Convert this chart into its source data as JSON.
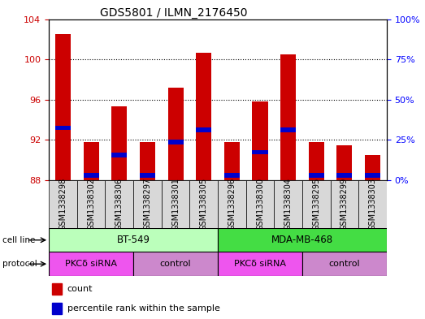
{
  "title": "GDS5801 / ILMN_2176450",
  "samples": [
    "GSM1338298",
    "GSM1338302",
    "GSM1338306",
    "GSM1338297",
    "GSM1338301",
    "GSM1338305",
    "GSM1338296",
    "GSM1338300",
    "GSM1338304",
    "GSM1338295",
    "GSM1338299",
    "GSM1338303"
  ],
  "red_bar_tops": [
    102.5,
    91.8,
    95.3,
    91.8,
    97.2,
    100.7,
    91.8,
    95.8,
    100.5,
    91.8,
    91.5,
    90.5
  ],
  "blue_bar_values": [
    93.2,
    88.5,
    90.5,
    88.5,
    91.8,
    93.0,
    88.5,
    90.8,
    93.0,
    88.5,
    88.5,
    88.5
  ],
  "bar_bottom": 88.0,
  "ylim_left": [
    88,
    104
  ],
  "ylim_right": [
    0,
    100
  ],
  "yticks_left": [
    88,
    92,
    96,
    100,
    104
  ],
  "yticks_right": [
    0,
    25,
    50,
    75,
    100
  ],
  "yticklabels_right": [
    "0%",
    "25%",
    "50%",
    "75%",
    "100%"
  ],
  "red_color": "#cc0000",
  "blue_color": "#0000cc",
  "cell_line_groups": [
    {
      "label": "BT-549",
      "start": 0,
      "end": 6,
      "color": "#bbffbb"
    },
    {
      "label": "MDA-MB-468",
      "start": 6,
      "end": 12,
      "color": "#44dd44"
    }
  ],
  "protocol_groups": [
    {
      "label": "PKCδ siRNA",
      "start": 0,
      "end": 3,
      "color": "#ee55ee"
    },
    {
      "label": "control",
      "start": 3,
      "end": 6,
      "color": "#cc88cc"
    },
    {
      "label": "PKCδ siRNA",
      "start": 6,
      "end": 9,
      "color": "#ee55ee"
    },
    {
      "label": "control",
      "start": 9,
      "end": 12,
      "color": "#cc88cc"
    }
  ],
  "bar_width": 0.55,
  "tick_label_fontsize": 7,
  "title_fontsize": 10,
  "blue_bar_height": 0.45
}
